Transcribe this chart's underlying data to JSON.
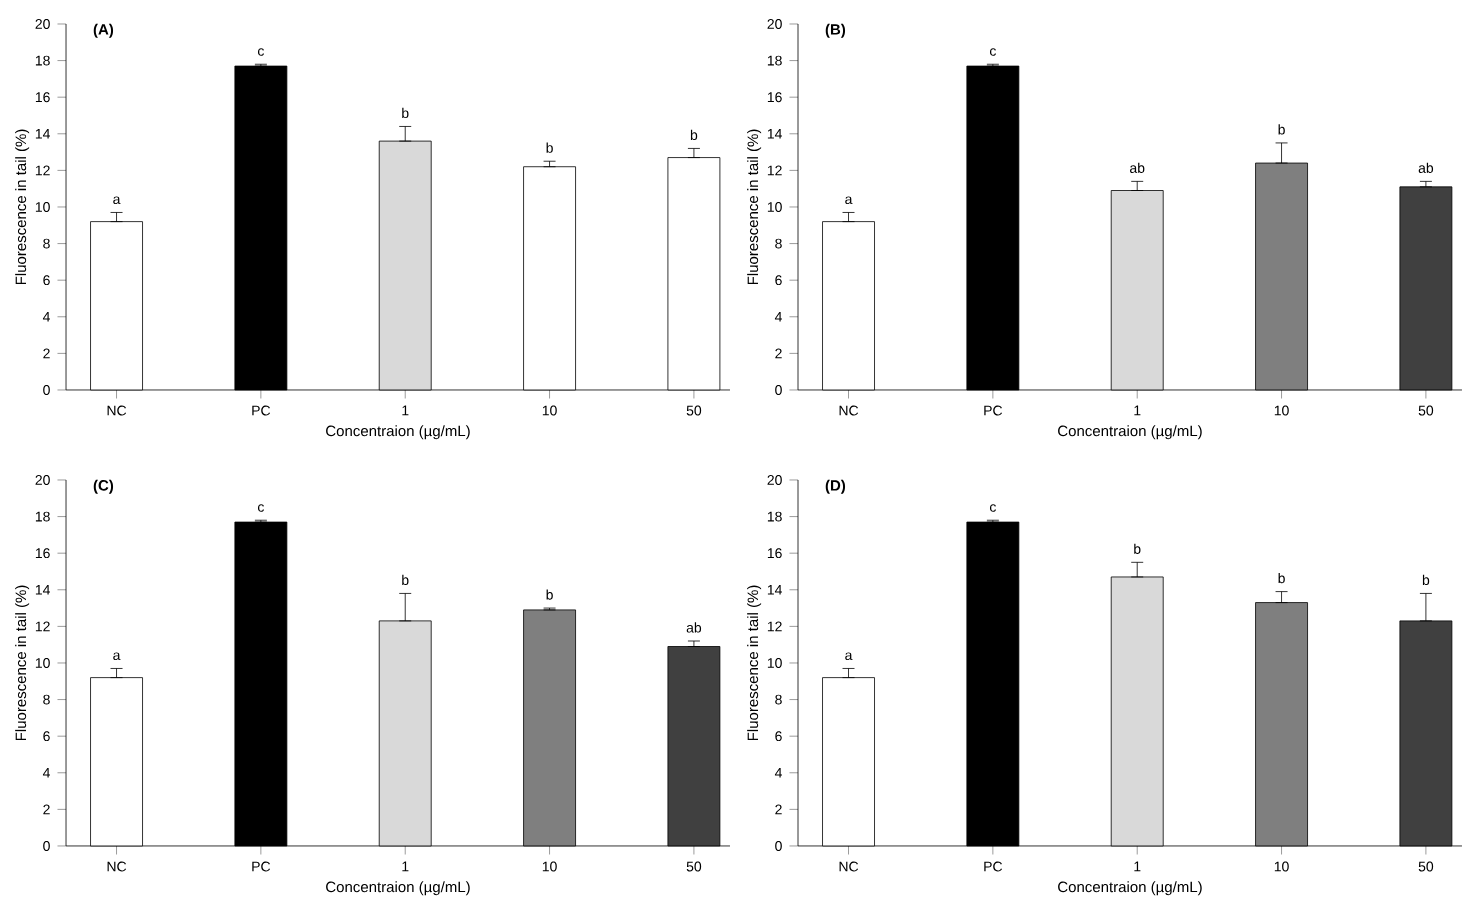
{
  "chart_data": [
    {
      "type": "bar",
      "title": "(A)",
      "xlabel": "Concentraion  (µg/mL)",
      "ylabel": "Fluorescence  in  tail  (%)",
      "categories": [
        "NC",
        "PC",
        "1",
        "10",
        "50"
      ],
      "values": [
        9.2,
        17.7,
        13.6,
        12.2,
        12.7
      ],
      "errors": [
        [
          9.2,
          9.7
        ],
        [
          17.7,
          17.8
        ],
        [
          13.6,
          14.4
        ],
        [
          12.2,
          12.5
        ],
        [
          12.7,
          13.2
        ]
      ],
      "colors": [
        "#ffffff",
        "#000000",
        "#d9d9d9",
        "#ffffff",
        "#ffffff"
      ],
      "ylim": [
        0,
        20
      ],
      "yticks": [
        0,
        2,
        4,
        6,
        8,
        10,
        12,
        14,
        16,
        18,
        20
      ],
      "annotations": [
        {
          "text": "a",
          "x": "NC",
          "y": 9.2
        },
        {
          "text": "c",
          "x": "PC",
          "y": 17.7
        },
        {
          "text": "b",
          "x": "1",
          "y": 13.6
        },
        {
          "text": "b",
          "x": "10",
          "y": 12.2
        },
        {
          "text": "b",
          "x": "50",
          "y": 12.7
        }
      ]
    },
    {
      "type": "bar",
      "title": "(B)",
      "xlabel": "Concentraion  (µg/mL)",
      "ylabel": "Fluorescence  in  tail  (%)",
      "categories": [
        "NC",
        "PC",
        "1",
        "10",
        "50"
      ],
      "values": [
        9.2,
        17.7,
        10.9,
        12.4,
        11.1
      ],
      "errors": [
        [
          9.2,
          9.7
        ],
        [
          17.7,
          17.8
        ],
        [
          10.9,
          11.4
        ],
        [
          12.4,
          13.5
        ],
        [
          11.1,
          11.4
        ]
      ],
      "colors": [
        "#ffffff",
        "#000000",
        "#d9d9d9",
        "#7f7f7f",
        "#404040"
      ],
      "ylim": [
        0,
        20
      ],
      "yticks": [
        0,
        2,
        4,
        6,
        8,
        10,
        12,
        14,
        16,
        18,
        20
      ],
      "annotations": [
        {
          "text": "a",
          "x": "NC",
          "y": 9.2
        },
        {
          "text": "c",
          "x": "PC",
          "y": 17.7
        },
        {
          "text": "ab",
          "x": "1",
          "y": 10.9
        },
        {
          "text": "b",
          "x": "10",
          "y": 12.4
        },
        {
          "text": "ab",
          "x": "50",
          "y": 11.1
        }
      ]
    },
    {
      "type": "bar",
      "title": "(C)",
      "xlabel": "Concentraion  (µg/mL)",
      "ylabel": "Fluorescence  in  tail  (%)",
      "categories": [
        "NC",
        "PC",
        "1",
        "10",
        "50"
      ],
      "values": [
        9.2,
        17.7,
        12.3,
        12.9,
        10.9
      ],
      "errors": [
        [
          9.2,
          9.7
        ],
        [
          17.7,
          17.8
        ],
        [
          12.3,
          13.8
        ],
        [
          12.9,
          13.0
        ],
        [
          10.9,
          11.2
        ]
      ],
      "colors": [
        "#ffffff",
        "#000000",
        "#d9d9d9",
        "#7f7f7f",
        "#404040"
      ],
      "ylim": [
        0,
        20
      ],
      "yticks": [
        0,
        2,
        4,
        6,
        8,
        10,
        12,
        14,
        16,
        18,
        20
      ],
      "annotations": [
        {
          "text": "a",
          "x": "NC",
          "y": 9.2
        },
        {
          "text": "c",
          "x": "PC",
          "y": 17.7
        },
        {
          "text": "b",
          "x": "1",
          "y": 12.3
        },
        {
          "text": "b",
          "x": "10",
          "y": 12.9
        },
        {
          "text": "ab",
          "x": "50",
          "y": 10.9
        }
      ]
    },
    {
      "type": "bar",
      "title": "(D)",
      "xlabel": "Concentraion  (µg/mL)",
      "ylabel": "Fluorescence  in  tail  (%)",
      "categories": [
        "NC",
        "PC",
        "1",
        "10",
        "50"
      ],
      "values": [
        9.2,
        17.7,
        14.7,
        13.3,
        12.3
      ],
      "errors": [
        [
          9.2,
          9.7
        ],
        [
          17.7,
          17.8
        ],
        [
          14.7,
          15.5
        ],
        [
          13.3,
          13.9
        ],
        [
          12.3,
          13.8
        ]
      ],
      "colors": [
        "#ffffff",
        "#000000",
        "#d9d9d9",
        "#7f7f7f",
        "#404040"
      ],
      "ylim": [
        0,
        20
      ],
      "yticks": [
        0,
        2,
        4,
        6,
        8,
        10,
        12,
        14,
        16,
        18,
        20
      ],
      "annotations": [
        {
          "text": "a",
          "x": "NC",
          "y": 9.2
        },
        {
          "text": "c",
          "x": "PC",
          "y": 17.7
        },
        {
          "text": "b",
          "x": "1",
          "y": 14.7
        },
        {
          "text": "b",
          "x": "10",
          "y": 13.3
        },
        {
          "text": "b",
          "x": "50",
          "y": 12.3
        }
      ]
    }
  ]
}
